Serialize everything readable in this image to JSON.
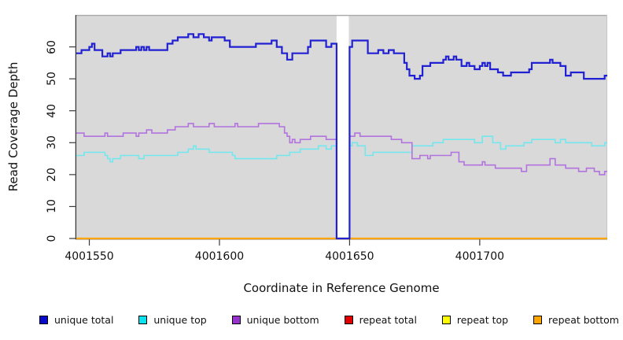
{
  "panel": {
    "background": "#d9d9d9",
    "gap_band_color": "#ffffff",
    "top_border_color": "#a9a9a9",
    "right_border_color": "#c4c4c4",
    "axis_color": "#3a3a3a"
  },
  "legend": {
    "items": [
      {
        "label": "unique total",
        "color": "#0a0acd"
      },
      {
        "label": "unique top",
        "color": "#0de0ee"
      },
      {
        "label": "unique bottom",
        "color": "#9932cc"
      },
      {
        "label": "repeat total",
        "color": "#e00000"
      },
      {
        "label": "repeat top",
        "color": "#ffff00"
      },
      {
        "label": "repeat bottom",
        "color": "#ffa500"
      }
    ]
  },
  "chart_data": {
    "type": "line",
    "style": "step",
    "title": "",
    "xlabel": "Coordinate in Reference Genome",
    "ylabel": "Read Coverage Depth",
    "xlim": [
      4001545,
      4001749
    ],
    "ylim": [
      0,
      70
    ],
    "x_ticks": [
      4001550,
      4001600,
      4001650,
      4001700
    ],
    "y_ticks": [
      0,
      10,
      20,
      30,
      40,
      50,
      60
    ],
    "grid": false,
    "legend_position": "bottom",
    "gap_region": {
      "x_start": 4001645,
      "x_end": 4001649.7
    },
    "series": [
      {
        "name": "unique total",
        "color": "#2121d3",
        "width": 2.2,
        "points": [
          [
            4001545,
            58
          ],
          [
            4001547,
            59
          ],
          [
            4001550,
            60
          ],
          [
            4001551,
            61
          ],
          [
            4001552,
            59
          ],
          [
            4001555,
            57
          ],
          [
            4001557,
            58
          ],
          [
            4001558,
            57
          ],
          [
            4001559,
            58
          ],
          [
            4001562,
            59
          ],
          [
            4001568,
            60
          ],
          [
            4001569,
            59
          ],
          [
            4001570,
            60
          ],
          [
            4001571,
            59
          ],
          [
            4001572,
            60
          ],
          [
            4001573,
            59
          ],
          [
            4001580,
            61
          ],
          [
            4001582,
            62
          ],
          [
            4001584,
            63
          ],
          [
            4001588,
            64
          ],
          [
            4001590,
            63
          ],
          [
            4001592,
            64
          ],
          [
            4001594,
            63
          ],
          [
            4001596,
            62
          ],
          [
            4001597,
            63
          ],
          [
            4001602,
            62
          ],
          [
            4001604,
            60
          ],
          [
            4001614,
            61
          ],
          [
            4001620,
            62
          ],
          [
            4001622,
            60
          ],
          [
            4001624,
            58
          ],
          [
            4001626,
            56
          ],
          [
            4001628,
            58
          ],
          [
            4001634,
            60
          ],
          [
            4001635,
            62
          ],
          [
            4001641,
            60
          ],
          [
            4001643,
            61
          ],
          [
            4001645,
            0
          ],
          [
            4001650,
            60
          ],
          [
            4001651,
            62
          ],
          [
            4001657,
            58
          ],
          [
            4001661,
            59
          ],
          [
            4001663,
            58
          ],
          [
            4001665,
            59
          ],
          [
            4001667,
            58
          ],
          [
            4001671,
            55
          ],
          [
            4001672,
            53
          ],
          [
            4001673,
            51
          ],
          [
            4001675,
            50
          ],
          [
            4001677,
            51
          ],
          [
            4001678,
            54
          ],
          [
            4001681,
            55
          ],
          [
            4001686,
            56
          ],
          [
            4001687,
            57
          ],
          [
            4001688,
            56
          ],
          [
            4001690,
            57
          ],
          [
            4001691,
            56
          ],
          [
            4001693,
            54
          ],
          [
            4001695,
            55
          ],
          [
            4001696,
            54
          ],
          [
            4001698,
            53
          ],
          [
            4001700,
            54
          ],
          [
            4001701,
            55
          ],
          [
            4001702,
            54
          ],
          [
            4001703,
            55
          ],
          [
            4001704,
            53
          ],
          [
            4001707,
            52
          ],
          [
            4001709,
            51
          ],
          [
            4001712,
            52
          ],
          [
            4001719,
            53
          ],
          [
            4001720,
            55
          ],
          [
            4001727,
            56
          ],
          [
            4001728,
            55
          ],
          [
            4001731,
            54
          ],
          [
            4001733,
            51
          ],
          [
            4001735,
            52
          ],
          [
            4001740,
            50
          ],
          [
            4001748,
            51
          ],
          [
            4001749,
            51
          ]
        ]
      },
      {
        "name": "unique top",
        "color": "#72e8ee",
        "width": 1.6,
        "points": [
          [
            4001545,
            26
          ],
          [
            4001548,
            27
          ],
          [
            4001556,
            26
          ],
          [
            4001557,
            25
          ],
          [
            4001558,
            24
          ],
          [
            4001559,
            25
          ],
          [
            4001562,
            26
          ],
          [
            4001569,
            25
          ],
          [
            4001571,
            26
          ],
          [
            4001584,
            27
          ],
          [
            4001588,
            28
          ],
          [
            4001590,
            29
          ],
          [
            4001591,
            28
          ],
          [
            4001596,
            27
          ],
          [
            4001605,
            26
          ],
          [
            4001606,
            25
          ],
          [
            4001622,
            26
          ],
          [
            4001627,
            27
          ],
          [
            4001631,
            28
          ],
          [
            4001638,
            29
          ],
          [
            4001641,
            28
          ],
          [
            4001643,
            29
          ],
          [
            4001645,
            0
          ],
          [
            4001650,
            29
          ],
          [
            4001651,
            30
          ],
          [
            4001653,
            29
          ],
          [
            4001656,
            26
          ],
          [
            4001659,
            27
          ],
          [
            4001674,
            29
          ],
          [
            4001682,
            30
          ],
          [
            4001686,
            31
          ],
          [
            4001698,
            30
          ],
          [
            4001701,
            32
          ],
          [
            4001705,
            30
          ],
          [
            4001708,
            28
          ],
          [
            4001710,
            29
          ],
          [
            4001717,
            30
          ],
          [
            4001720,
            31
          ],
          [
            4001729,
            30
          ],
          [
            4001731,
            31
          ],
          [
            4001733,
            30
          ],
          [
            4001743,
            29
          ],
          [
            4001748,
            30
          ],
          [
            4001749,
            30
          ]
        ]
      },
      {
        "name": "unique bottom",
        "color": "#b273de",
        "width": 1.6,
        "points": [
          [
            4001545,
            33
          ],
          [
            4001548,
            32
          ],
          [
            4001556,
            33
          ],
          [
            4001557,
            32
          ],
          [
            4001563,
            33
          ],
          [
            4001568,
            32
          ],
          [
            4001569,
            33
          ],
          [
            4001572,
            34
          ],
          [
            4001574,
            33
          ],
          [
            4001580,
            34
          ],
          [
            4001583,
            35
          ],
          [
            4001588,
            36
          ],
          [
            4001590,
            35
          ],
          [
            4001596,
            36
          ],
          [
            4001598,
            35
          ],
          [
            4001606,
            36
          ],
          [
            4001607,
            35
          ],
          [
            4001615,
            36
          ],
          [
            4001623,
            35
          ],
          [
            4001625,
            33
          ],
          [
            4001626,
            32
          ],
          [
            4001627,
            30
          ],
          [
            4001628,
            31
          ],
          [
            4001629,
            30
          ],
          [
            4001631,
            31
          ],
          [
            4001635,
            32
          ],
          [
            4001641,
            31
          ],
          [
            4001645,
            0
          ],
          [
            4001650,
            32
          ],
          [
            4001652,
            33
          ],
          [
            4001654,
            32
          ],
          [
            4001666,
            31
          ],
          [
            4001670,
            30
          ],
          [
            4001674,
            25
          ],
          [
            4001677,
            26
          ],
          [
            4001680,
            25
          ],
          [
            4001681,
            26
          ],
          [
            4001689,
            27
          ],
          [
            4001692,
            24
          ],
          [
            4001694,
            23
          ],
          [
            4001701,
            24
          ],
          [
            4001702,
            23
          ],
          [
            4001706,
            22
          ],
          [
            4001716,
            21
          ],
          [
            4001718,
            23
          ],
          [
            4001727,
            25
          ],
          [
            4001729,
            23
          ],
          [
            4001733,
            22
          ],
          [
            4001738,
            21
          ],
          [
            4001741,
            22
          ],
          [
            4001744,
            21
          ],
          [
            4001746,
            20
          ],
          [
            4001748,
            21
          ],
          [
            4001749,
            21
          ]
        ]
      },
      {
        "name": "repeat total",
        "color": "#de1212",
        "width": 1.6,
        "points": [
          [
            4001545,
            0
          ],
          [
            4001749,
            0
          ]
        ]
      },
      {
        "name": "repeat top",
        "color": "#ffff00",
        "width": 1.6,
        "points": [
          [
            4001545,
            0
          ],
          [
            4001749,
            0
          ]
        ]
      },
      {
        "name": "repeat bottom",
        "color": "#ffa500",
        "width": 2.2,
        "points": [
          [
            4001545,
            0
          ],
          [
            4001749,
            0
          ]
        ]
      }
    ]
  }
}
